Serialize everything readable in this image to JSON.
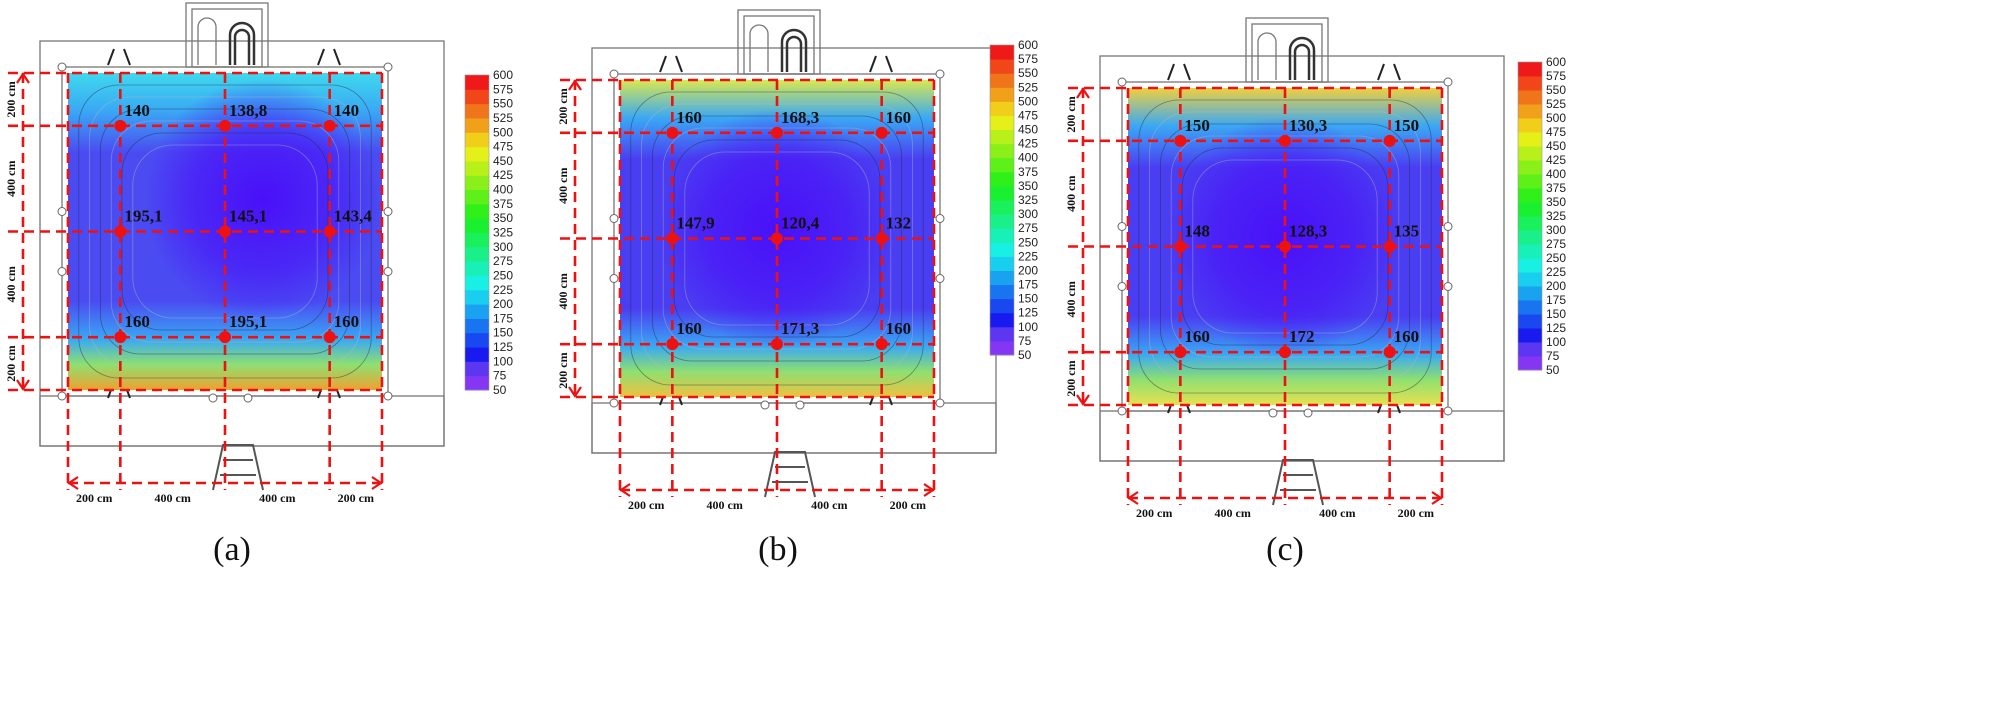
{
  "colorbar": {
    "ticks": [
      "600",
      "575",
      "550",
      "525",
      "500",
      "475",
      "450",
      "425",
      "400",
      "375",
      "350",
      "325",
      "300",
      "275",
      "250",
      "225",
      "200",
      "175",
      "150",
      "125",
      "100",
      "75",
      "50"
    ],
    "min": 50,
    "max": 600
  },
  "dimensions": {
    "horizontal": [
      "200 cm",
      "400 cm",
      "400 cm",
      "200 cm"
    ],
    "vertical": [
      "200 cm",
      "400 cm",
      "400 cm",
      "200 cm"
    ]
  },
  "panels": [
    {
      "caption": "(a)",
      "values": [
        [
          "140",
          "138,8",
          "140"
        ],
        [
          "195,1",
          "145,1",
          "143,4"
        ],
        [
          "160",
          "195,1",
          "160"
        ]
      ],
      "colors": {
        "top": "#3fd9ee",
        "bottom": "#f0a030",
        "base": "#4a4cf2",
        "core": "#4a10f8"
      }
    },
    {
      "caption": "(b)",
      "values": [
        [
          "160",
          "168,3",
          "160"
        ],
        [
          "147,9",
          "120,4",
          "132"
        ],
        [
          "160",
          "171,3",
          "160"
        ]
      ],
      "colors": {
        "top": "#d8e850",
        "bottom": "#f0c040",
        "base": "#4a3ef2",
        "core": "#4a10f8"
      }
    },
    {
      "caption": "(c)",
      "values": [
        [
          "150",
          "130,3",
          "150"
        ],
        [
          "148",
          "128,3",
          "135"
        ],
        [
          "160",
          "172",
          "160"
        ]
      ],
      "colors": {
        "top": "#f0d040",
        "bottom": "#e8e050",
        "base": "#4a3ef2",
        "core": "#4a10f8"
      }
    }
  ],
  "marker_color": "#ee1111"
}
